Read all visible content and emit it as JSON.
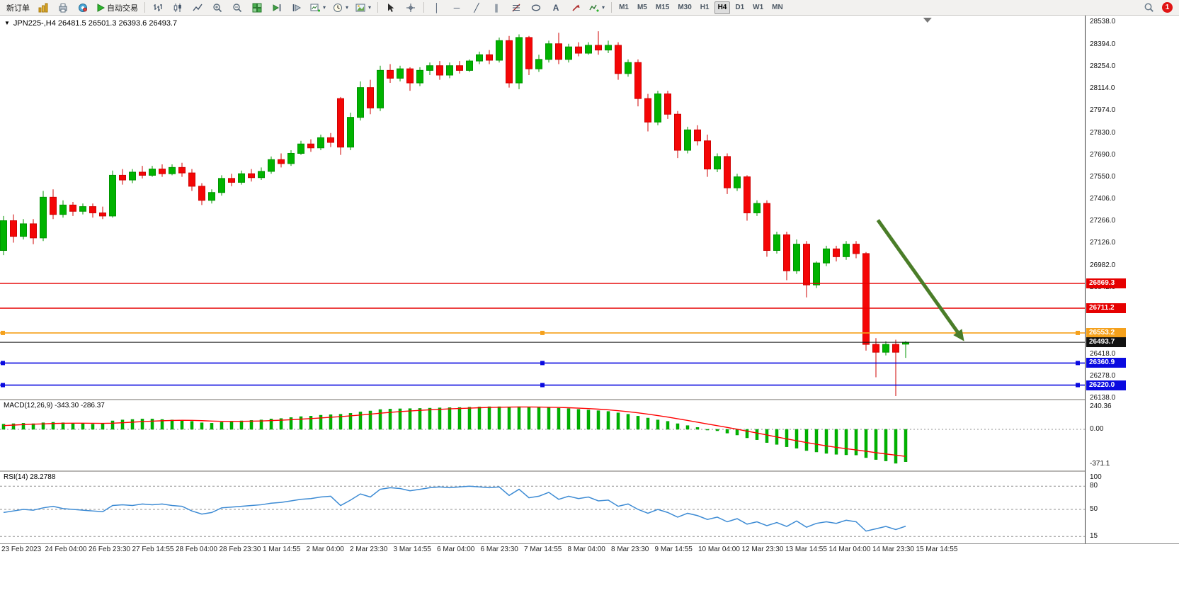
{
  "toolbar": {
    "new_order": "新订单",
    "auto_trading": "自动交易",
    "timeframes": [
      "M1",
      "M5",
      "M15",
      "M30",
      "H1",
      "H4",
      "D1",
      "W1",
      "MN"
    ],
    "active_timeframe": "H4",
    "notification_count": "1",
    "glyphs": {
      "vertical_line": "│",
      "horizontal_line": "─",
      "trendline": "╱",
      "channel": "∥",
      "text_tool": "A",
      "crosshair": "+",
      "dropdown": "▾",
      "one_click_toggle": "▼"
    }
  },
  "chart": {
    "title_line": "JPN225-,H4 26481.5 26501.3 26393.6 26493.7",
    "symbol": "JPN225-",
    "period": "H4"
  },
  "colors": {
    "bull": "#00b300",
    "bull_border": "#009400",
    "bear": "#f40606",
    "bear_border": "#cf0202",
    "macd_hist": "#00b300",
    "macd_signal": "#ff0000",
    "rsi_line": "#3d8bd4",
    "level_dash": "#909090",
    "axis_text": "#111111"
  },
  "chart_data": {
    "type": "candlestick",
    "title": "JPN225-,H4",
    "price_axis": {
      "view_min": 26132,
      "view_max": 28580,
      "ticks": [
        "28538.0",
        "28394.0",
        "28254.0",
        "28114.0",
        "27974.0",
        "27830.0",
        "27690.0",
        "27550.0",
        "27406.0",
        "27266.0",
        "27126.0",
        "26982.0",
        "26842.0",
        "26418.0",
        "26278.0",
        "26138.0"
      ]
    },
    "candles": [
      [
        27080,
        27300,
        27050,
        27270
      ],
      [
        27270,
        27310,
        27130,
        27170
      ],
      [
        27170,
        27280,
        27150,
        27250
      ],
      [
        27250,
        27280,
        27120,
        27160
      ],
      [
        27160,
        27460,
        27140,
        27420
      ],
      [
        27420,
        27470,
        27280,
        27310
      ],
      [
        27310,
        27400,
        27290,
        27370
      ],
      [
        27370,
        27390,
        27300,
        27330
      ],
      [
        27330,
        27380,
        27310,
        27360
      ],
      [
        27360,
        27380,
        27290,
        27320
      ],
      [
        27320,
        27360,
        27280,
        27300
      ],
      [
        27300,
        27590,
        27290,
        27560
      ],
      [
        27560,
        27600,
        27500,
        27530
      ],
      [
        27530,
        27600,
        27510,
        27580
      ],
      [
        27580,
        27620,
        27540,
        27560
      ],
      [
        27560,
        27620,
        27550,
        27600
      ],
      [
        27600,
        27630,
        27550,
        27570
      ],
      [
        27570,
        27630,
        27560,
        27610
      ],
      [
        27610,
        27640,
        27550,
        27575
      ],
      [
        27575,
        27600,
        27460,
        27490
      ],
      [
        27490,
        27510,
        27370,
        27400
      ],
      [
        27400,
        27470,
        27380,
        27450
      ],
      [
        27450,
        27560,
        27430,
        27540
      ],
      [
        27540,
        27570,
        27490,
        27515
      ],
      [
        27515,
        27590,
        27500,
        27570
      ],
      [
        27570,
        27600,
        27520,
        27545
      ],
      [
        27545,
        27610,
        27530,
        27585
      ],
      [
        27585,
        27680,
        27570,
        27660
      ],
      [
        27660,
        27700,
        27610,
        27635
      ],
      [
        27635,
        27720,
        27620,
        27700
      ],
      [
        27700,
        27780,
        27690,
        27760
      ],
      [
        27760,
        27790,
        27710,
        27735
      ],
      [
        27735,
        27820,
        27720,
        27800
      ],
      [
        27800,
        27830,
        27740,
        27770
      ],
      [
        28050,
        28060,
        27690,
        27740
      ],
      [
        27740,
        27960,
        27720,
        27930
      ],
      [
        27930,
        28160,
        27910,
        28120
      ],
      [
        28120,
        28170,
        27950,
        27990
      ],
      [
        27990,
        28260,
        27970,
        28230
      ],
      [
        28230,
        28270,
        28150,
        28180
      ],
      [
        28180,
        28260,
        28160,
        28240
      ],
      [
        28240,
        28250,
        28100,
        28150
      ],
      [
        28150,
        28250,
        28130,
        28230
      ],
      [
        28230,
        28280,
        28200,
        28260
      ],
      [
        28260,
        28290,
        28170,
        28200
      ],
      [
        28200,
        28280,
        28180,
        28260
      ],
      [
        28260,
        28290,
        28210,
        28230
      ],
      [
        28230,
        28300,
        28220,
        28290
      ],
      [
        28290,
        28350,
        28270,
        28330
      ],
      [
        28330,
        28360,
        28270,
        28295
      ],
      [
        28295,
        28440,
        28280,
        28420
      ],
      [
        28420,
        28450,
        28120,
        28150
      ],
      [
        28150,
        28460,
        28110,
        28440
      ],
      [
        28440,
        28450,
        28200,
        28240
      ],
      [
        28240,
        28330,
        28220,
        28300
      ],
      [
        28300,
        28420,
        28280,
        28400
      ],
      [
        28400,
        28470,
        28270,
        28300
      ],
      [
        28300,
        28400,
        28280,
        28380
      ],
      [
        28380,
        28410,
        28320,
        28340
      ],
      [
        28340,
        28410,
        28330,
        28390
      ],
      [
        28390,
        28480,
        28330,
        28360
      ],
      [
        28360,
        28420,
        28340,
        28390
      ],
      [
        28390,
        28410,
        28170,
        28210
      ],
      [
        28210,
        28300,
        28190,
        28280
      ],
      [
        28280,
        28300,
        28000,
        28050
      ],
      [
        28050,
        28080,
        27840,
        27900
      ],
      [
        27900,
        28100,
        27880,
        28080
      ],
      [
        28080,
        28100,
        27920,
        27950
      ],
      [
        27950,
        27970,
        27670,
        27720
      ],
      [
        27720,
        27870,
        27700,
        27850
      ],
      [
        27850,
        27880,
        27750,
        27780
      ],
      [
        27780,
        27820,
        27550,
        27600
      ],
      [
        27600,
        27700,
        27580,
        27680
      ],
      [
        27680,
        27700,
        27440,
        27480
      ],
      [
        27480,
        27570,
        27460,
        27550
      ],
      [
        27550,
        27560,
        27270,
        27320
      ],
      [
        27320,
        27400,
        27300,
        27380
      ],
      [
        27380,
        27400,
        27040,
        27080
      ],
      [
        27080,
        27200,
        27060,
        27180
      ],
      [
        27180,
        27200,
        26890,
        26950
      ],
      [
        26950,
        27150,
        26930,
        27120
      ],
      [
        27120,
        27140,
        26780,
        26860
      ],
      [
        26860,
        27010,
        26840,
        27000
      ],
      [
        27000,
        27110,
        26980,
        27090
      ],
      [
        27090,
        27110,
        27010,
        27040
      ],
      [
        27040,
        27140,
        27020,
        27120
      ],
      [
        27120,
        27140,
        27030,
        27060
      ],
      [
        27060,
        27070,
        26440,
        26480
      ],
      [
        26480,
        26520,
        26270,
        26430
      ],
      [
        26430,
        26500,
        26410,
        26480
      ],
      [
        26480,
        26510,
        26150,
        26430
      ],
      [
        26481.5,
        26501.3,
        26393.6,
        26493.7
      ]
    ],
    "horizontal_lines": [
      {
        "price": 26869.3,
        "label": "26869.3",
        "color": "#e60000",
        "width": 1.4,
        "style": "solid",
        "selected": false
      },
      {
        "price": 26711.2,
        "label": "26711.2",
        "color": "#e60000",
        "width": 1.4,
        "style": "solid",
        "selected": false
      },
      {
        "price": 26553.2,
        "label": "26553.2",
        "color": "#f5a11c",
        "width": 1.6,
        "style": "solid",
        "selected": true
      },
      {
        "price": 26493.7,
        "label": "26493.7",
        "color": "#111111",
        "width": 1,
        "style": "solid",
        "selected": false,
        "role": "current-price"
      },
      {
        "price": 26360.9,
        "label": "26360.9",
        "color": "#0a0ae0",
        "width": 1.6,
        "style": "solid",
        "selected": true
      },
      {
        "price": 26220.0,
        "label": "26220.0",
        "color": "#0a0ae0",
        "width": 1.6,
        "style": "solid",
        "selected": true
      }
    ],
    "arrow": {
      "from_index": 88.2,
      "from_price": 27274,
      "to_index": 96.9,
      "to_price": 26500,
      "color": "#4a7d28"
    },
    "chart_shift_marker_index": 93.2,
    "indicators": {
      "macd": {
        "label": "MACD(12,26,9) -343.30 -286.37",
        "axis_ticks": [
          "240.36",
          "0.00",
          "-371.1"
        ],
        "zero_level": 0,
        "histogram": [
          55,
          60,
          65,
          60,
          70,
          75,
          70,
          65,
          60,
          55,
          60,
          90,
          100,
          105,
          110,
          110,
          105,
          100,
          95,
          85,
          70,
          65,
          75,
          85,
          90,
          95,
          100,
          110,
          115,
          125,
          135,
          140,
          150,
          155,
          160,
          170,
          185,
          195,
          210,
          215,
          218,
          220,
          222,
          225,
          228,
          230,
          232,
          235,
          238,
          240,
          240,
          238,
          240,
          235,
          230,
          228,
          225,
          220,
          212,
          205,
          198,
          190,
          175,
          160,
          140,
          120,
          100,
          85,
          60,
          40,
          20,
          0,
          -15,
          -40,
          -60,
          -90,
          -110,
          -140,
          -160,
          -185,
          -200,
          -225,
          -240,
          -255,
          -265,
          -270,
          -272,
          -300,
          -320,
          -335,
          -360,
          -343.3
        ],
        "signal": [
          40,
          45,
          50,
          55,
          58,
          62,
          64,
          65,
          65,
          64,
          63,
          65,
          70,
          76,
          82,
          87,
          91,
          94,
          96,
          95,
          92,
          88,
          85,
          84,
          85,
          87,
          89,
          93,
          97,
          102,
          108,
          114,
          121,
          128,
          135,
          143,
          152,
          161,
          171,
          180,
          188,
          195,
          201,
          207,
          212,
          217,
          221,
          225,
          229,
          232,
          234,
          236,
          237,
          237,
          236,
          234,
          232,
          229,
          225,
          220,
          214,
          207,
          198,
          187,
          175,
          161,
          146,
          130,
          112,
          94,
          76,
          57,
          39,
          20,
          1,
          -19,
          -39,
          -60,
          -81,
          -101,
          -121,
          -140,
          -158,
          -175,
          -191,
          -205,
          -218,
          -232,
          -247,
          -261,
          -274,
          -286.4
        ]
      },
      "rsi": {
        "label": "RSI(14) 28.2788",
        "axis_ticks": [
          "100",
          "80",
          "50",
          "15"
        ],
        "levels": [
          80,
          50,
          15
        ],
        "values": [
          46,
          48,
          50,
          49,
          52,
          54,
          51,
          50,
          49,
          48,
          47,
          55,
          56,
          55,
          57,
          56,
          57,
          55,
          54,
          48,
          44,
          46,
          52,
          53,
          54,
          55,
          56,
          58,
          59,
          61,
          63,
          64,
          66,
          67,
          55,
          62,
          70,
          66,
          76,
          78,
          77,
          74,
          76,
          78,
          79,
          78,
          79,
          80,
          79,
          78,
          79,
          68,
          76,
          65,
          67,
          72,
          63,
          67,
          64,
          66,
          61,
          62,
          54,
          57,
          50,
          45,
          50,
          46,
          40,
          45,
          42,
          37,
          40,
          34,
          38,
          31,
          34,
          29,
          33,
          28,
          35,
          27,
          32,
          34,
          32,
          36,
          34,
          22,
          25,
          28,
          24,
          28.28
        ]
      }
    },
    "time_labels": [
      "23 Feb 2023",
      "24 Feb 04:00",
      "26 Feb 23:30",
      "27 Feb 14:55",
      "28 Feb 04:00",
      "28 Feb 23:30",
      "1 Mar 14:55",
      "2 Mar 04:00",
      "2 Mar 23:30",
      "3 Mar 14:55",
      "6 Mar 04:00",
      "6 Mar 23:30",
      "7 Mar 14:55",
      "8 Mar 04:00",
      "8 Mar 23:30",
      "9 Mar 14:55",
      "10 Mar 04:00",
      "12 Mar 23:30",
      "13 Mar 14:55",
      "14 Mar 04:00",
      "14 Mar 23:30",
      "15 Mar 14:55"
    ]
  }
}
